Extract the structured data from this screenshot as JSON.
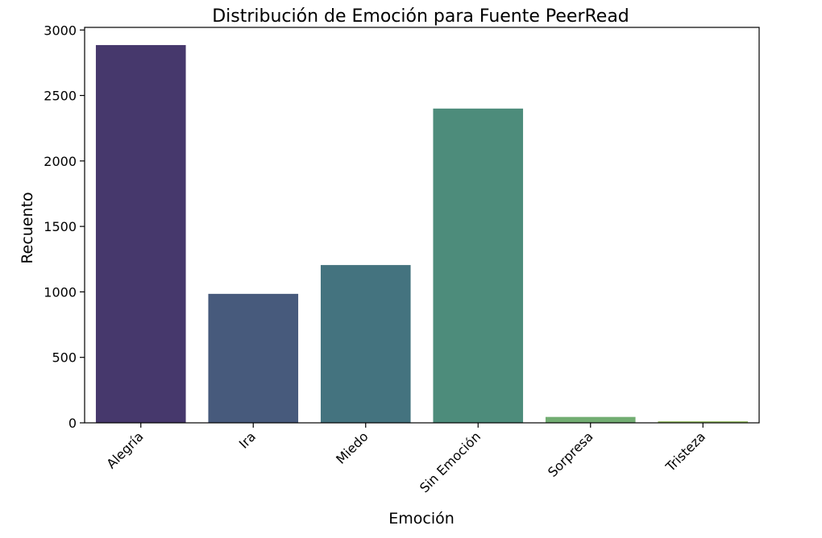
{
  "chart_data": {
    "type": "bar",
    "title": "Distribución de Emoción para Fuente PeerRead",
    "xlabel": "Emoción",
    "ylabel": "Recuento",
    "categories": [
      "Alegría",
      "Ira",
      "Miedo",
      "Sin Emoción",
      "Sorpresa",
      "Tristeza"
    ],
    "values": [
      2885,
      985,
      1205,
      2400,
      45,
      12
    ],
    "ylim": [
      0,
      3020
    ],
    "yticks": [
      0,
      500,
      1000,
      1500,
      2000,
      2500,
      3000
    ],
    "colors": [
      "#46386c",
      "#475a7c",
      "#44737f",
      "#4d8c7b",
      "#72ad72",
      "#9cc26a"
    ],
    "grid": false,
    "legend": "none"
  }
}
